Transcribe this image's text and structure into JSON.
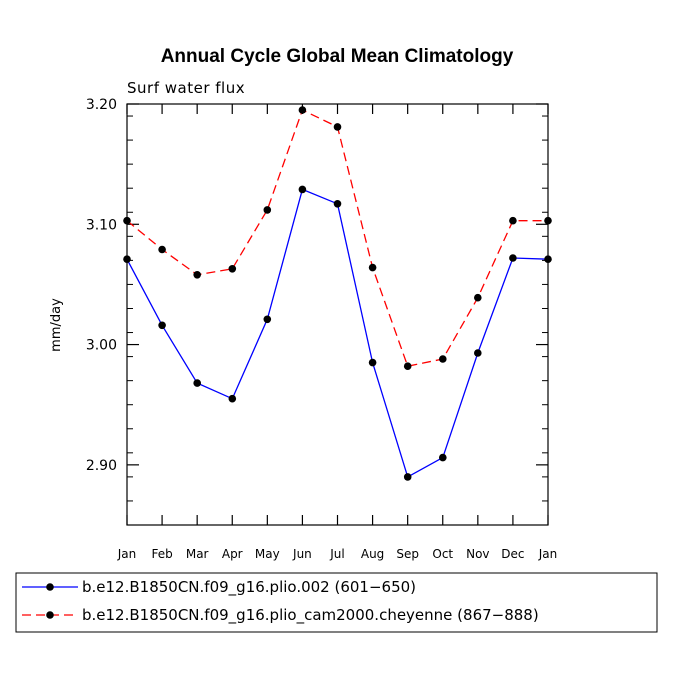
{
  "chart_data": {
    "type": "line",
    "title": "Annual Cycle Global Mean Climatology",
    "subtitle": "Surf water flux",
    "xlabel": "",
    "ylabel": "mm/day",
    "categories": [
      "Jan",
      "Feb",
      "Mar",
      "Apr",
      "May",
      "Jun",
      "Jul",
      "Aug",
      "Sep",
      "Oct",
      "Nov",
      "Dec",
      "Jan"
    ],
    "ylim": [
      2.85,
      3.2
    ],
    "yticks": [
      2.9,
      3.0,
      3.1,
      3.2
    ],
    "ytick_labels": [
      "2.90",
      "3.00",
      "3.10",
      "3.20"
    ],
    "yminor_step": 0.02,
    "series": [
      {
        "name": "b.e12.B1850CN.f09_g16.plio.002 (601−650)",
        "color": "#0000ff",
        "dash": "solid",
        "values": [
          3.071,
          3.016,
          2.968,
          2.955,
          3.021,
          3.129,
          3.117,
          2.985,
          2.89,
          2.906,
          2.993,
          3.072,
          3.071
        ]
      },
      {
        "name": "b.e12.B1850CN.f09_g16.plio_cam2000.cheyenne (867−888)",
        "color": "#ff0000",
        "dash": "dashed",
        "values": [
          3.103,
          3.079,
          3.058,
          3.063,
          3.112,
          3.195,
          3.181,
          3.064,
          2.982,
          2.988,
          3.039,
          3.103,
          3.103
        ]
      }
    ]
  }
}
